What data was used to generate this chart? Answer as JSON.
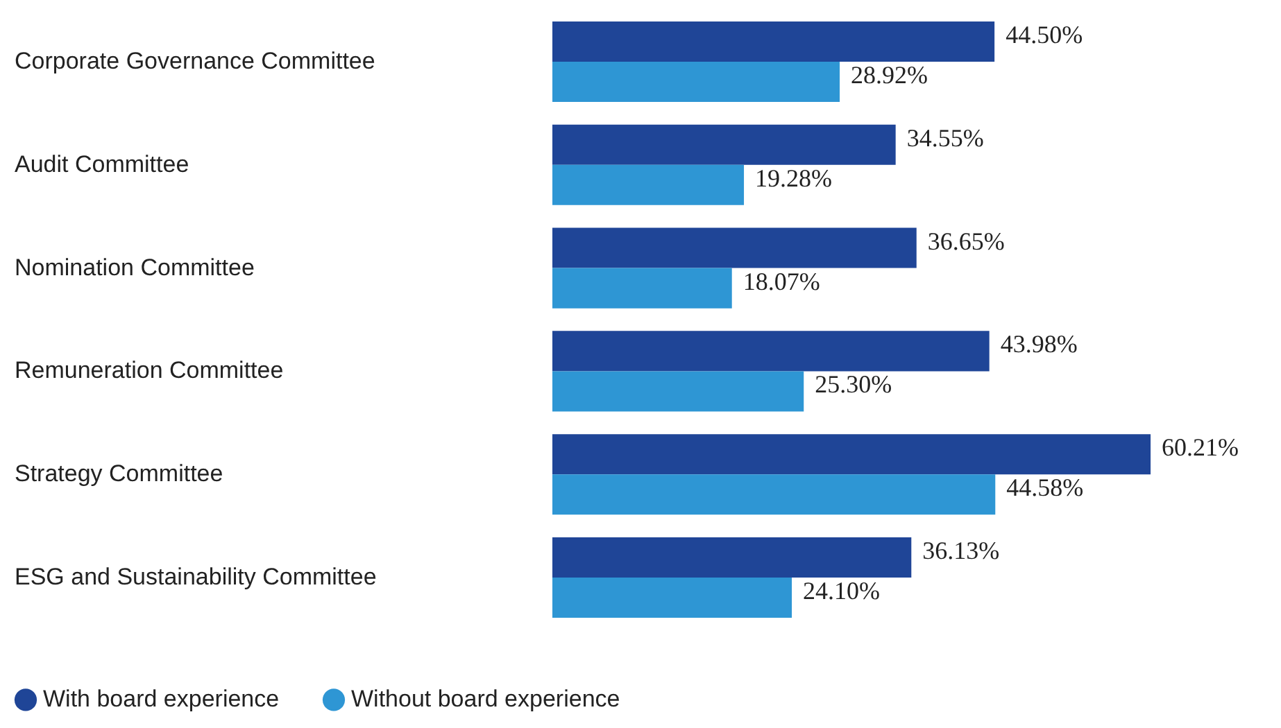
{
  "chart_data": {
    "type": "bar",
    "orientation": "horizontal",
    "categories": [
      "Corporate Governance Committee",
      "Audit Committee",
      "Nomination Committee",
      "Remuneration Committee",
      "Strategy Committee",
      "ESG and Sustainability Committee"
    ],
    "series": [
      {
        "name": "With board experience",
        "color": "#1f4597",
        "values": [
          44.5,
          34.55,
          36.65,
          43.98,
          60.21,
          36.13
        ],
        "value_labels": [
          "44.50%",
          "34.55%",
          "36.65%",
          "43.98%",
          "60.21%",
          "36.13%"
        ]
      },
      {
        "name": "Without board experience",
        "color": "#2e96d4",
        "values": [
          28.92,
          19.28,
          18.07,
          25.3,
          44.58,
          24.1
        ],
        "value_labels": [
          "28.92%",
          "19.28%",
          "18.07%",
          "25.30%",
          "44.58%",
          "24.10%"
        ]
      }
    ],
    "legend": "bottom left"
  }
}
